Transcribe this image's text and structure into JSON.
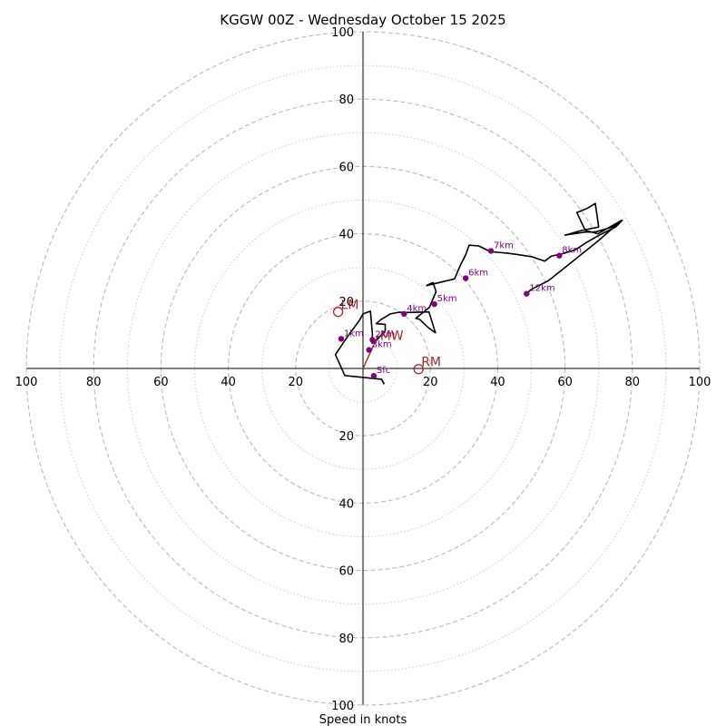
{
  "chart_data": {
    "type": "scatter",
    "title": "KGGW 00Z - Wednesday October 15 2025",
    "xlabel": "Speed in knots",
    "ylabel": "",
    "xlim": [
      -100,
      100
    ],
    "ylim": [
      -100,
      100
    ],
    "rings_major": [
      20,
      40,
      60,
      80,
      100
    ],
    "rings_minor": [
      10,
      30,
      50,
      70,
      90
    ],
    "tick_labels": {
      "right": [
        "20",
        "40",
        "60",
        "80",
        "100"
      ],
      "left": [
        "20",
        "40",
        "60",
        "80",
        "100"
      ],
      "up": [
        "20",
        "40",
        "60",
        "80",
        "100"
      ],
      "down": [
        "20",
        "40",
        "60",
        "80",
        "100"
      ]
    },
    "colors": {
      "trace": "#000000",
      "height_markers": "#800080",
      "motion": "#b22222",
      "grid": "#bbbbbb"
    },
    "hodograph_trace_u": [
      6.3,
      5.5,
      -5.4,
      -8.2,
      -5.4,
      -4.2,
      -1.1,
      0.0,
      2.2,
      2.8,
      2.7,
      3.8,
      6.6,
      6.6,
      3.9,
      5.3,
      8.1,
      10.8,
      12.5,
      19.6,
      21.5,
      19.4,
      16.8,
      15.7,
      19.7,
      21.7,
      20.8,
      19.4,
      18.9,
      27.2,
      28.9,
      30.5,
      31.5,
      34.4,
      38.0,
      40.0,
      43.0,
      46.0,
      50.0,
      54.0,
      56.0,
      59.0,
      63.0,
      66.5,
      70.0,
      75.0,
      77.0,
      74.0,
      69.0,
      66.0,
      60.0,
      65.0,
      70.0,
      69.0,
      66.5,
      63.5,
      66.0,
      69.8,
      76.8,
      70.0,
      65.0,
      60.0,
      55.0,
      50.0,
      48.6
    ],
    "hodograph_trace_v": [
      -4.7,
      -3.2,
      -2.1,
      4.1,
      8.3,
      10.0,
      14.2,
      16.2,
      17.0,
      10.2,
      7.5,
      8.1,
      11.2,
      13.1,
      13.3,
      14.5,
      16.2,
      16.7,
      16.6,
      16.8,
      10.6,
      12.1,
      14.6,
      14.9,
      18.1,
      22.8,
      25.5,
      24.9,
      24.6,
      26.6,
      30.6,
      33.8,
      36.6,
      36.4,
      34.6,
      34.5,
      34.2,
      33.8,
      33.2,
      31.9,
      33.4,
      34.0,
      35.2,
      37.5,
      39.5,
      42.0,
      44.0,
      42.0,
      40.5,
      40.5,
      39.6,
      41.0,
      42.0,
      49.0,
      47.5,
      46.3,
      41.0,
      40.0,
      44.0,
      38.0,
      34.0,
      30.0,
      26.0,
      23.5,
      22.2
    ],
    "height_markers": [
      {
        "label": "Sfc",
        "u": 3.2,
        "v": -2.2
      },
      {
        "label": "1km",
        "u": -6.5,
        "v": 8.8
      },
      {
        "label": "2km",
        "u": 2.8,
        "v": 8.5
      },
      {
        "label": "3km",
        "u": 1.8,
        "v": 5.5
      },
      {
        "label": "4km",
        "u": 12.2,
        "v": 16.2
      },
      {
        "label": "5km",
        "u": 21.2,
        "v": 19.1
      },
      {
        "label": "6km",
        "u": 30.5,
        "v": 26.8
      },
      {
        "label": "7km",
        "u": 38.0,
        "v": 34.9
      },
      {
        "label": "8km",
        "u": 58.3,
        "v": 33.5
      },
      {
        "label": "12km",
        "u": 48.6,
        "v": 22.2
      }
    ],
    "storm_motion": [
      {
        "label": "LM",
        "u": -7.4,
        "v": 16.8
      },
      {
        "label": "RM",
        "u": 16.5,
        "v": -0.2
      }
    ],
    "mean_wind": {
      "label": "MW",
      "u": 4.5,
      "v": 9.8
    }
  }
}
